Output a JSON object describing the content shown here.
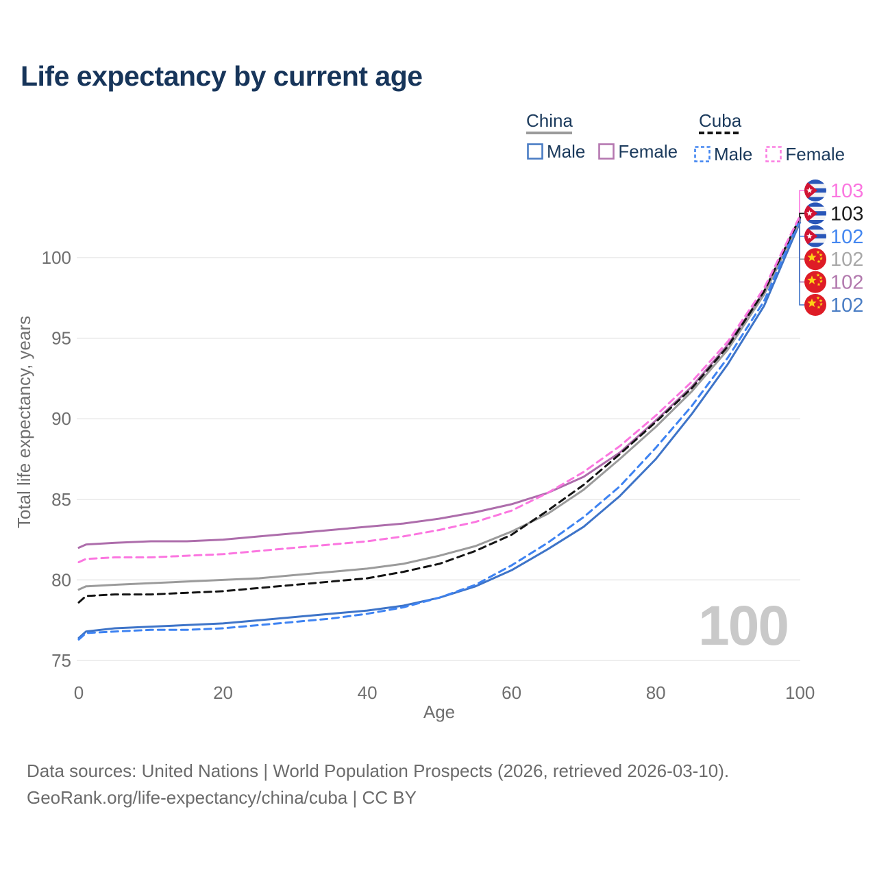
{
  "page": {
    "title": "Life expectancy by current age"
  },
  "legend": {
    "groups": [
      {
        "country": "China",
        "line_style": "solid",
        "underline_color": "#9b9b9b",
        "items": [
          {
            "label": "Male",
            "color": "#4a7dc4"
          },
          {
            "label": "Female",
            "color": "#b578b0"
          }
        ]
      },
      {
        "country": "Cuba",
        "line_style": "dashed",
        "underline_color": "#141414",
        "items": [
          {
            "label": "Male",
            "color": "#4285f0"
          },
          {
            "label": "Female",
            "color": "#fb7de2"
          }
        ]
      }
    ]
  },
  "watermark": "100",
  "footer": {
    "line1": "Data sources: United Nations | World Population Prospects (2026, retrieved 2026-03-10).",
    "line2": "GeoRank.org/life-expectancy/china/cuba | CC BY"
  },
  "icons": {
    "cuba-flag-icon": "circular Cuban flag",
    "china-flag-icon": "circular Chinese flag"
  },
  "ui_colors": {
    "title_text": "#17355a",
    "legend_text": "#1b3a5c",
    "axis_text": "#6f6f6f",
    "grid": "#e8e8e8",
    "watermark": "#c9c9c9",
    "footer_text": "#6b6b6b"
  },
  "chart_data": {
    "type": "line",
    "title": "Life expectancy by current age",
    "xlabel": "Age",
    "ylabel": "Total life expectancy, years",
    "x_ticks": [
      0,
      20,
      40,
      60,
      80,
      100
    ],
    "y_ticks": [
      75,
      80,
      85,
      90,
      95,
      100
    ],
    "xlim": [
      0,
      100
    ],
    "ylim": [
      75,
      103.5
    ],
    "grid": "horizontal-only",
    "legend_position": "top-right",
    "ages": [
      0,
      1,
      5,
      10,
      15,
      20,
      25,
      30,
      35,
      40,
      45,
      50,
      55,
      60,
      65,
      70,
      75,
      80,
      85,
      90,
      95,
      100
    ],
    "series": [
      {
        "name": "Cuba Female",
        "country": "Cuba",
        "sex": "Female",
        "line": "dashed",
        "color": "#fb76e0",
        "end_label": "103",
        "end_label_color": "#fb76e0",
        "flag": "cuba",
        "values": [
          81.1,
          81.3,
          81.4,
          81.4,
          81.5,
          81.6,
          81.8,
          82.0,
          82.2,
          82.4,
          82.7,
          83.1,
          83.6,
          84.3,
          85.4,
          86.7,
          88.3,
          90.2,
          92.3,
          94.8,
          98.1,
          102.6
        ]
      },
      {
        "name": "Cuba Both sexes",
        "country": "Cuba",
        "sex": "Both",
        "line": "dashed",
        "color": "#141414",
        "end_label": "103",
        "end_label_color": "#1a1a1a",
        "flag": "cuba",
        "values": [
          78.6,
          79.0,
          79.1,
          79.1,
          79.2,
          79.3,
          79.5,
          79.7,
          79.9,
          80.1,
          80.5,
          81.0,
          81.8,
          82.8,
          84.3,
          85.9,
          87.8,
          89.8,
          91.9,
          94.5,
          97.9,
          102.5
        ]
      },
      {
        "name": "Cuba Male",
        "country": "Cuba",
        "sex": "Male",
        "line": "dashed",
        "color": "#3e83f2",
        "end_label": "102",
        "end_label_color": "#4487f0",
        "flag": "cuba",
        "values": [
          76.3,
          76.7,
          76.8,
          76.9,
          76.9,
          77.0,
          77.2,
          77.4,
          77.6,
          77.9,
          78.3,
          78.9,
          79.7,
          80.9,
          82.3,
          83.9,
          85.8,
          88.2,
          90.8,
          93.8,
          97.3,
          102.4
        ]
      },
      {
        "name": "China Both sexes",
        "country": "China",
        "sex": "Both",
        "line": "solid",
        "color": "#9b9b9b",
        "end_label": "102",
        "end_label_color": "#a8a8a8",
        "flag": "china",
        "values": [
          79.4,
          79.6,
          79.7,
          79.8,
          79.9,
          80.0,
          80.1,
          80.3,
          80.5,
          80.7,
          81.0,
          81.5,
          82.1,
          83.0,
          84.1,
          85.6,
          87.5,
          89.5,
          91.7,
          94.3,
          97.7,
          102.3
        ]
      },
      {
        "name": "China Female",
        "country": "China",
        "sex": "Female",
        "line": "solid",
        "color": "#ad6dab",
        "end_label": "102",
        "end_label_color": "#b279ae",
        "flag": "china",
        "values": [
          82.0,
          82.2,
          82.3,
          82.4,
          82.4,
          82.5,
          82.7,
          82.9,
          83.1,
          83.3,
          83.5,
          83.8,
          84.2,
          84.7,
          85.4,
          86.4,
          87.9,
          89.9,
          92.0,
          94.6,
          97.9,
          102.4
        ]
      },
      {
        "name": "China Male",
        "country": "China",
        "sex": "Male",
        "line": "solid",
        "color": "#3e74c8",
        "end_label": "102",
        "end_label_color": "#4a7dc4",
        "flag": "china",
        "values": [
          76.4,
          76.8,
          77.0,
          77.1,
          77.2,
          77.3,
          77.5,
          77.7,
          77.9,
          78.1,
          78.4,
          78.9,
          79.6,
          80.6,
          81.9,
          83.3,
          85.2,
          87.5,
          90.3,
          93.4,
          97.0,
          102.2
        ]
      }
    ]
  }
}
